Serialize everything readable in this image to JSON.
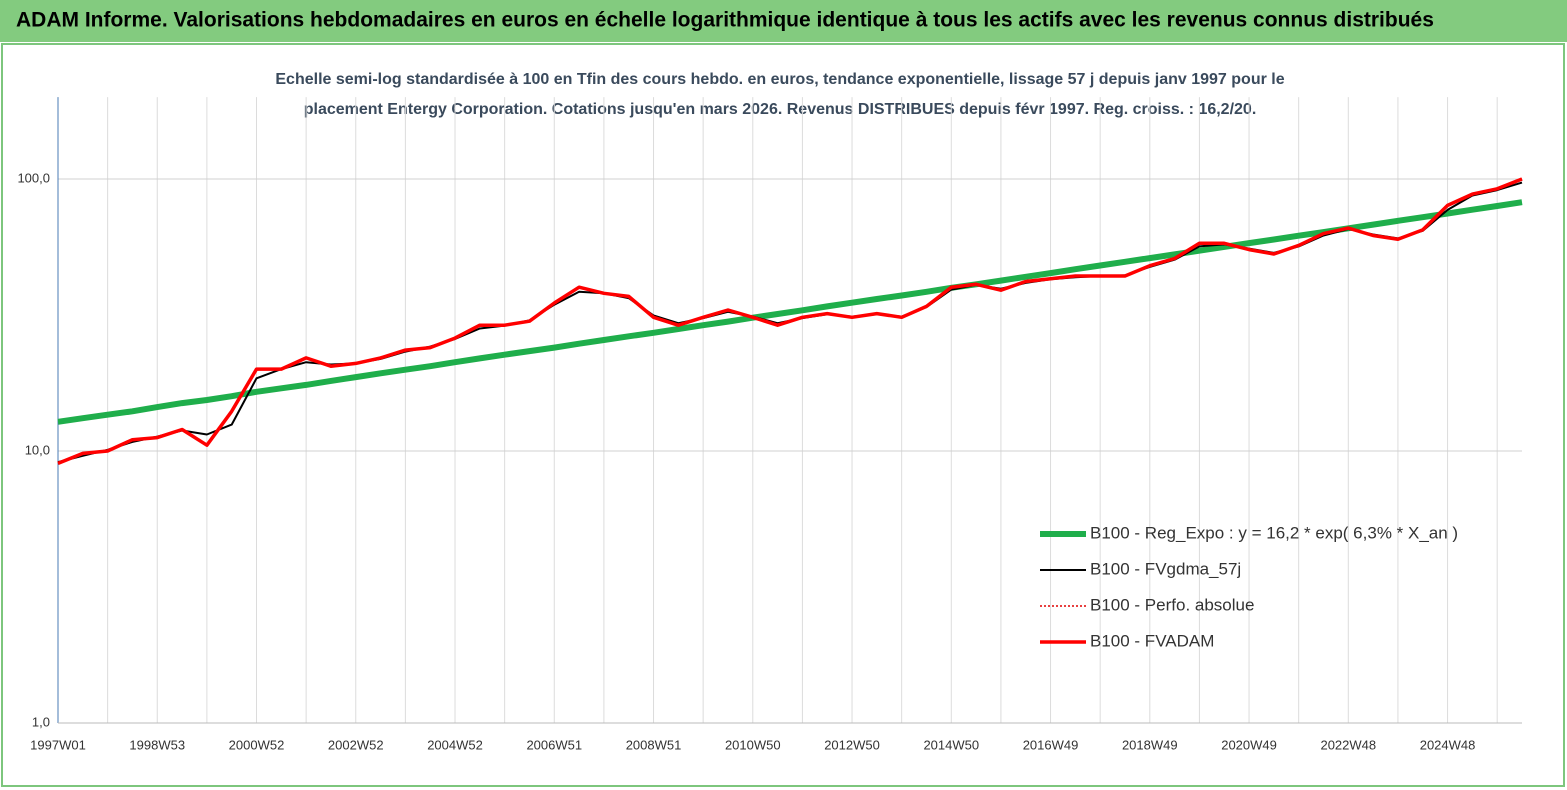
{
  "header": {
    "title": "ADAM Informe. Valorisations hebdomadaires en euros en échelle logarithmique identique à tous les actifs avec les revenus connus distribués"
  },
  "chart_data": {
    "type": "line",
    "title": [
      "Echelle semi-log standardisée à 100 en Tfin des cours hebdo. en euros, tendance exponentielle, lissage 57 j depuis janv 1997 pour le",
      "placement Entergy Corporation. Cotations jusqu'en mars 2026. Revenus DISTRIBUES  depuis févr 1997. Reg. croiss. : 16,2/20."
    ],
    "categories": [
      "1997W01",
      null,
      null,
      null,
      "1998W53",
      null,
      null,
      null,
      "2000W52",
      null,
      null,
      null,
      "2002W52",
      null,
      null,
      null,
      "2004W52",
      null,
      null,
      null,
      "2006W51",
      null,
      null,
      null,
      "2008W51",
      null,
      null,
      null,
      "2010W50",
      null,
      null,
      null,
      "2012W50",
      null,
      null,
      null,
      "2014W50",
      null,
      null,
      null,
      "2016W49",
      null,
      null,
      null,
      "2018W49",
      null,
      null,
      null,
      "2020W49",
      null,
      null,
      null,
      "2022W48",
      null,
      null,
      null,
      "2024W48",
      null,
      null,
      null
    ],
    "log_scale": true,
    "ylim": [
      1,
      200
    ],
    "yticks": [
      {
        "value": 1,
        "label": "1,0"
      },
      {
        "value": 10,
        "label": "10,0"
      },
      {
        "value": 100,
        "label": "100,0"
      }
    ],
    "grid": true,
    "legend": "lower right",
    "series": [
      {
        "name": "B100 - Reg_Expo : y = 16,2 * exp( 6,3% *  X_an )",
        "color": "#1fae4b",
        "width": 6,
        "dash": "none",
        "values": [
          12.8,
          13.2,
          13.6,
          14.0,
          14.5,
          15.0,
          15.4,
          15.9,
          16.5,
          17.0,
          17.5,
          18.1,
          18.7,
          19.3,
          19.9,
          20.5,
          21.2,
          21.9,
          22.6,
          23.3,
          24.0,
          24.8,
          25.6,
          26.4,
          27.2,
          28.1,
          29.0,
          29.9,
          30.9,
          31.9,
          32.9,
          34.0,
          35.1,
          36.2,
          37.3,
          38.5,
          39.8,
          41.0,
          42.3,
          43.7,
          45.1,
          46.6,
          48.1,
          49.6,
          51.2,
          52.8,
          54.5,
          56.3,
          58.1,
          59.9,
          61.9,
          63.8,
          65.9,
          68.0,
          70.2,
          72.4,
          74.7,
          77.1,
          79.6,
          82.2
        ]
      },
      {
        "name": "B100 - FVgdma_57j",
        "color": "#000000",
        "width": 2,
        "dash": "none",
        "values": [
          9.1,
          9.6,
          10.1,
          10.8,
          11.3,
          11.9,
          11.5,
          12.5,
          18.5,
          20.0,
          21.2,
          20.8,
          21.0,
          21.8,
          23.2,
          24.2,
          25.8,
          28.2,
          28.9,
          30.2,
          34.5,
          38.5,
          38.0,
          36.5,
          31.5,
          29.5,
          30.8,
          32.5,
          31.2,
          29.5,
          30.8,
          31.8,
          31.2,
          31.8,
          31.2,
          33.8,
          39.2,
          40.8,
          39.5,
          41.5,
          42.8,
          43.5,
          44.0,
          44.2,
          47.5,
          50.5,
          56.5,
          57.5,
          55.5,
          53.5,
          56.5,
          62.0,
          65.5,
          62.5,
          60.5,
          64.5,
          77.0,
          87.0,
          91.0,
          97.0
        ]
      },
      {
        "name": "B100 - Perfo. absolue",
        "color": "#e00000",
        "width": 1.5,
        "dash": "2 2",
        "values": [
          9.0,
          9.8,
          10.0,
          11.0,
          11.2,
          12.0,
          10.5,
          14.0,
          20.0,
          20.0,
          22.0,
          20.5,
          21.0,
          22.0,
          23.5,
          24.0,
          26.0,
          29.0,
          29.0,
          30.0,
          35.0,
          40.0,
          38.0,
          37.0,
          31.0,
          29.0,
          31.0,
          33.0,
          31.0,
          29.0,
          31.0,
          32.0,
          31.0,
          32.0,
          31.0,
          34.0,
          40.0,
          41.0,
          39.0,
          42.0,
          43.0,
          44.0,
          44.0,
          44.0,
          48.0,
          51.0,
          58.0,
          58.0,
          55.0,
          53.0,
          57.0,
          63.0,
          66.0,
          62.0,
          60.0,
          65.0,
          80.0,
          88.0,
          92.0,
          100.0
        ]
      },
      {
        "name": "B100 - FVADAM",
        "color": "#ff0000",
        "width": 3.5,
        "dash": "none",
        "values": [
          9.0,
          9.8,
          10.0,
          11.0,
          11.2,
          12.0,
          10.5,
          14.0,
          20.0,
          20.0,
          22.0,
          20.5,
          21.0,
          22.0,
          23.5,
          24.0,
          26.0,
          29.0,
          29.0,
          30.0,
          35.0,
          40.0,
          38.0,
          37.0,
          31.0,
          29.0,
          31.0,
          33.0,
          31.0,
          29.0,
          31.0,
          32.0,
          31.0,
          32.0,
          31.0,
          34.0,
          40.0,
          41.0,
          39.0,
          42.0,
          43.0,
          44.0,
          44.0,
          44.0,
          48.0,
          51.0,
          58.0,
          58.0,
          55.0,
          53.0,
          57.0,
          63.0,
          66.0,
          62.0,
          60.0,
          65.0,
          80.0,
          88.0,
          92.0,
          100.0
        ]
      }
    ]
  }
}
